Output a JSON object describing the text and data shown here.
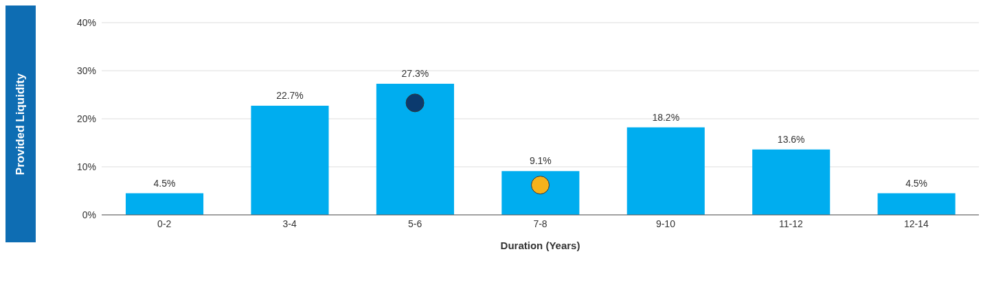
{
  "chart_data": {
    "type": "bar",
    "xlabel": "Duration (Years)",
    "ylabel": "Provided Liquidity",
    "categories": [
      "0-2",
      "3-4",
      "5-6",
      "7-8",
      "9-10",
      "11-12",
      "12-14"
    ],
    "series": [
      {
        "color": "#00adef",
        "values": [
          4.5,
          22.7,
          27.3,
          9.1,
          18.2,
          13.6,
          4.5
        ],
        "value_labels": [
          "4.5%",
          "22.7%",
          "27.3%",
          "9.1%",
          "18.2%",
          "13.6%",
          "4.5%"
        ]
      },
      {
        "type": "scatter",
        "color": "#0b3a6e",
        "x": [
          "5-6"
        ],
        "values": [
          23.3
        ]
      },
      {
        "type": "scatter",
        "color": "#f5b21b",
        "x": [
          "7-8"
        ],
        "values": [
          6.2
        ]
      }
    ],
    "ylim": [
      0,
      40
    ],
    "yticks": [
      {
        "value": 0,
        "label": "0%"
      },
      {
        "value": 10,
        "label": "10%"
      },
      {
        "value": 20,
        "label": "20%"
      },
      {
        "value": 30,
        "label": "30%"
      },
      {
        "value": 40,
        "label": "40%"
      }
    ],
    "grid": "y",
    "marker": "circle"
  }
}
